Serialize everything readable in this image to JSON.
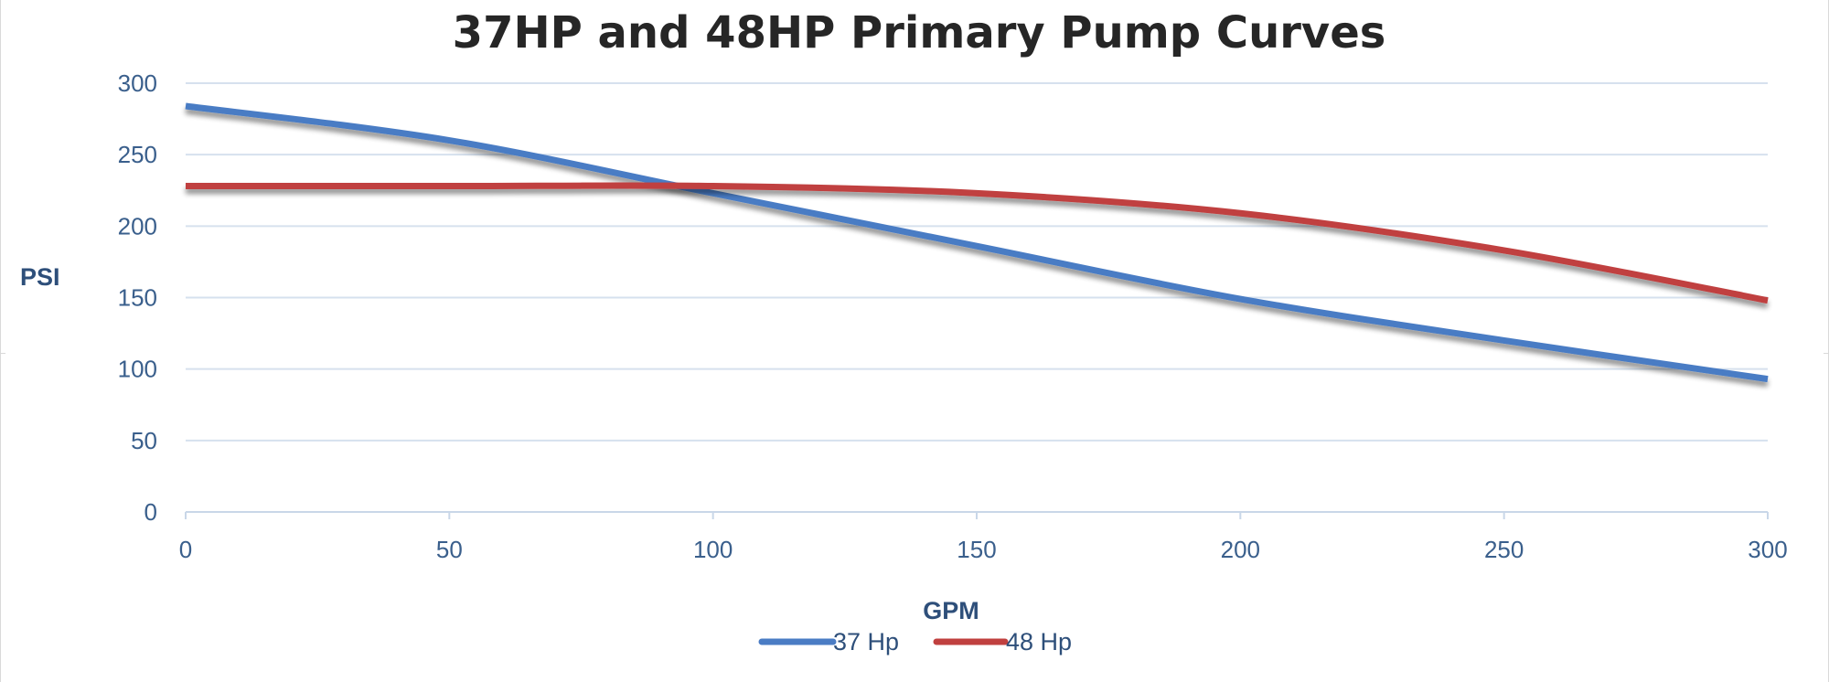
{
  "chart_data": {
    "type": "line",
    "title": "37HP and 48HP Primary Pump Curves",
    "xlabel": "GPM",
    "ylabel": "PSI",
    "xlim": [
      0,
      300
    ],
    "ylim": [
      0,
      300
    ],
    "x_ticks": [
      0,
      50,
      100,
      150,
      200,
      250,
      300
    ],
    "y_ticks": [
      0,
      50,
      100,
      150,
      200,
      250,
      300
    ],
    "grid": true,
    "legend_position": "bottom",
    "series": [
      {
        "name": "37 Hp",
        "color": "#4a7cc4",
        "x": [
          0,
          50,
          100,
          150,
          200,
          250,
          300
        ],
        "y": [
          284,
          260,
          223,
          186,
          149,
          120,
          93
        ]
      },
      {
        "name": "48 Hp",
        "color": "#c0403f",
        "x": [
          0,
          50,
          100,
          150,
          200,
          250,
          300
        ],
        "y": [
          228,
          228,
          228,
          223,
          209,
          183,
          148
        ]
      }
    ]
  }
}
